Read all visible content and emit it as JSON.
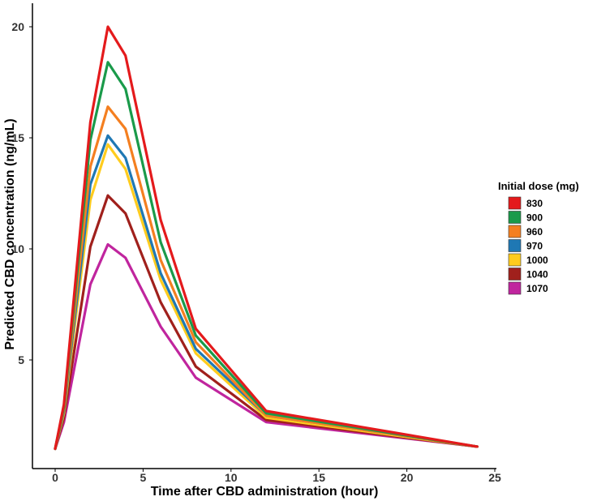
{
  "chart_data": {
    "type": "line",
    "title": "",
    "xlabel": "Time after CBD administration (hour)",
    "ylabel": "Predicted CBD concentration (ng/mL)",
    "xlim": [
      0,
      25
    ],
    "ylim": [
      0,
      20
    ],
    "xticks": [
      0,
      5,
      10,
      15,
      20,
      25
    ],
    "yticks": [
      5,
      10,
      15,
      20
    ],
    "grid": false,
    "legend": {
      "title": "Initial dose (mg)",
      "placement": "right"
    },
    "x": [
      0,
      0.5,
      2,
      3,
      4,
      6,
      8,
      12,
      24
    ],
    "series": [
      {
        "name": "830",
        "color": "#e41a1c",
        "values": [
          1.0,
          3.0,
          15.7,
          20.0,
          18.7,
          11.3,
          6.4,
          2.7,
          1.1
        ]
      },
      {
        "name": "900",
        "color": "#1a9a4a",
        "values": [
          1.0,
          2.9,
          14.9,
          18.4,
          17.2,
          10.3,
          6.1,
          2.6,
          1.1
        ]
      },
      {
        "name": "960",
        "color": "#f47f20",
        "values": [
          1.0,
          2.8,
          13.7,
          16.4,
          15.4,
          9.5,
          5.8,
          2.5,
          1.1
        ]
      },
      {
        "name": "970",
        "color": "#1f78b4",
        "values": [
          1.0,
          2.7,
          12.9,
          15.1,
          14.1,
          8.9,
          5.5,
          2.5,
          1.1
        ]
      },
      {
        "name": "1000",
        "color": "#ffcc1e",
        "values": [
          1.0,
          2.6,
          12.2,
          14.7,
          13.6,
          8.6,
          5.3,
          2.4,
          1.1
        ]
      },
      {
        "name": "1040",
        "color": "#a0201c",
        "values": [
          1.0,
          2.4,
          10.1,
          12.4,
          11.6,
          7.6,
          4.7,
          2.3,
          1.1
        ]
      },
      {
        "name": "1070",
        "color": "#c0259e",
        "values": [
          1.0,
          2.2,
          8.4,
          10.2,
          9.6,
          6.5,
          4.2,
          2.2,
          1.1
        ]
      }
    ]
  }
}
